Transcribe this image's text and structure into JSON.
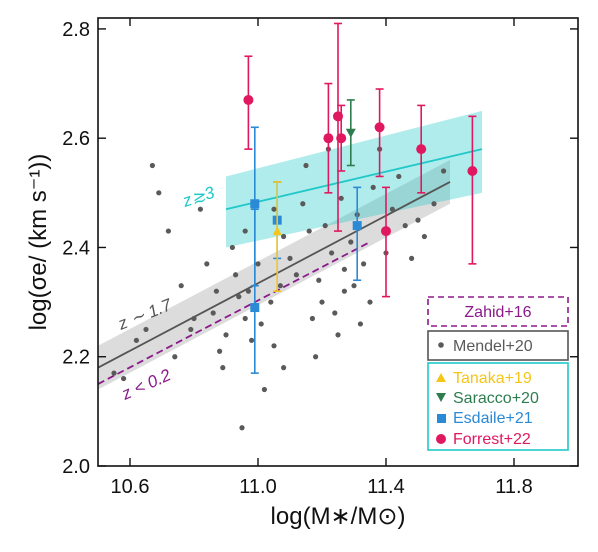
{
  "chart_data": {
    "type": "scatter",
    "xlabel": "log(M∗/M⊙)",
    "ylabel": "log(σe/ (km s⁻¹))",
    "xlim": [
      10.5,
      12.0
    ],
    "ylim": [
      2.0,
      2.82
    ],
    "x_ticks": [
      10.6,
      11.0,
      11.4,
      11.8
    ],
    "y_ticks": [
      2.0,
      2.2,
      2.4,
      2.6,
      2.8
    ],
    "grid": false,
    "legend_position": "lower-right",
    "colors": {
      "mendel": "#5a5a5a",
      "tanaka": "#f5c518",
      "saracco": "#2e7d4f",
      "esdaile": "#2a8ad6",
      "forrest": "#e0185f",
      "zahid": "#8b1a8b",
      "z3": "#20c8c8",
      "z17": "#555555"
    },
    "legend": {
      "zahid": "Zahid+16",
      "mendel": "Mendel+20",
      "tanaka": "Tanaka+19",
      "saracco": "Saracco+20",
      "esdaile": "Esdaile+21",
      "forrest": "Forrest+22"
    },
    "annotations": {
      "z3": "z≳3",
      "z17": "z ∼ 1.7",
      "z02": "z < 0.2"
    },
    "mendel_points": [
      [
        10.55,
        2.17
      ],
      [
        10.58,
        2.16
      ],
      [
        10.62,
        2.23
      ],
      [
        10.65,
        2.25
      ],
      [
        10.67,
        2.55
      ],
      [
        10.69,
        2.5
      ],
      [
        10.72,
        2.43
      ],
      [
        10.74,
        2.2
      ],
      [
        10.76,
        2.33
      ],
      [
        10.79,
        2.25
      ],
      [
        10.8,
        2.27
      ],
      [
        10.82,
        2.47
      ],
      [
        10.84,
        2.37
      ],
      [
        10.86,
        2.28
      ],
      [
        10.88,
        2.21
      ],
      [
        10.89,
        2.18
      ],
      [
        10.9,
        2.24
      ],
      [
        10.92,
        2.4
      ],
      [
        10.93,
        2.35
      ],
      [
        10.94,
        2.31
      ],
      [
        10.95,
        2.07
      ],
      [
        10.96,
        2.27
      ],
      [
        10.97,
        2.32
      ],
      [
        10.98,
        2.23
      ],
      [
        11.0,
        2.37
      ],
      [
        11.01,
        2.26
      ],
      [
        11.02,
        2.14
      ],
      [
        11.04,
        2.3
      ],
      [
        11.05,
        2.22
      ],
      [
        11.07,
        2.33
      ],
      [
        11.08,
        2.42
      ],
      [
        11.1,
        2.38
      ],
      [
        11.12,
        2.35
      ],
      [
        11.14,
        2.48
      ],
      [
        11.16,
        2.43
      ],
      [
        11.17,
        2.27
      ],
      [
        11.19,
        2.34
      ],
      [
        11.2,
        2.3
      ],
      [
        11.21,
        2.44
      ],
      [
        11.22,
        2.58
      ],
      [
        11.23,
        2.39
      ],
      [
        11.24,
        2.28
      ],
      [
        11.25,
        2.24
      ],
      [
        11.26,
        2.49
      ],
      [
        11.27,
        2.36
      ],
      [
        11.29,
        2.41
      ],
      [
        11.3,
        2.33
      ],
      [
        11.31,
        2.46
      ],
      [
        11.33,
        2.37
      ],
      [
        11.35,
        2.3
      ],
      [
        11.36,
        2.51
      ],
      [
        11.38,
        2.58
      ],
      [
        11.4,
        2.39
      ],
      [
        11.42,
        2.47
      ],
      [
        11.44,
        2.53
      ],
      [
        11.46,
        2.44
      ],
      [
        11.48,
        2.38
      ],
      [
        11.5,
        2.45
      ],
      [
        11.52,
        2.42
      ],
      [
        11.55,
        2.48
      ],
      [
        11.58,
        2.54
      ],
      [
        11.15,
        2.55
      ],
      [
        11.05,
        2.47
      ],
      [
        10.96,
        2.43
      ],
      [
        11.32,
        2.26
      ],
      [
        11.18,
        2.2
      ],
      [
        10.87,
        2.32
      ],
      [
        11.08,
        2.18
      ],
      [
        11.27,
        2.32
      ]
    ],
    "tanaka": [
      {
        "x": 11.06,
        "y": 2.43,
        "ylo": 2.32,
        "yhi": 2.52
      }
    ],
    "saracco": [
      {
        "x": 11.29,
        "y": 2.61,
        "ylo": 2.55,
        "yhi": 2.67
      }
    ],
    "esdaile": [
      {
        "x": 10.99,
        "y": 2.48,
        "ylo": 2.33,
        "yhi": 2.62
      },
      {
        "x": 11.06,
        "y": 2.45,
        "ylo": 2.38,
        "yhi": 2.52
      },
      {
        "x": 10.99,
        "y": 2.29,
        "ylo": 2.17,
        "yhi": 2.47
      },
      {
        "x": 11.31,
        "y": 2.44,
        "ylo": 2.34,
        "yhi": 2.51
      }
    ],
    "forrest": [
      {
        "x": 10.97,
        "y": 2.67,
        "ylo": 2.58,
        "yhi": 2.75
      },
      {
        "x": 11.22,
        "y": 2.6,
        "ylo": 2.5,
        "yhi": 2.7
      },
      {
        "x": 11.25,
        "y": 2.64,
        "ylo": 2.43,
        "yhi": 2.81
      },
      {
        "x": 11.26,
        "y": 2.6,
        "ylo": 2.54,
        "yhi": 2.66
      },
      {
        "x": 11.38,
        "y": 2.62,
        "ylo": 2.53,
        "yhi": 2.69
      },
      {
        "x": 11.4,
        "y": 2.43,
        "ylo": 2.31,
        "yhi": 2.51
      },
      {
        "x": 11.51,
        "y": 2.58,
        "ylo": 2.5,
        "yhi": 2.66
      },
      {
        "x": 11.67,
        "y": 2.54,
        "ylo": 2.37,
        "yhi": 2.64
      }
    ],
    "fits": {
      "z3": {
        "x": [
          10.9,
          11.7
        ],
        "y": [
          2.47,
          2.58
        ],
        "lo": [
          2.4,
          2.5
        ],
        "hi": [
          2.53,
          2.65
        ]
      },
      "z17": {
        "x": [
          10.5,
          11.6
        ],
        "y": [
          2.18,
          2.52
        ],
        "lo": [
          2.14,
          2.48
        ],
        "hi": [
          2.22,
          2.56
        ]
      },
      "z02": {
        "x": [
          10.5,
          11.35
        ],
        "y": [
          2.15,
          2.41
        ]
      }
    }
  }
}
